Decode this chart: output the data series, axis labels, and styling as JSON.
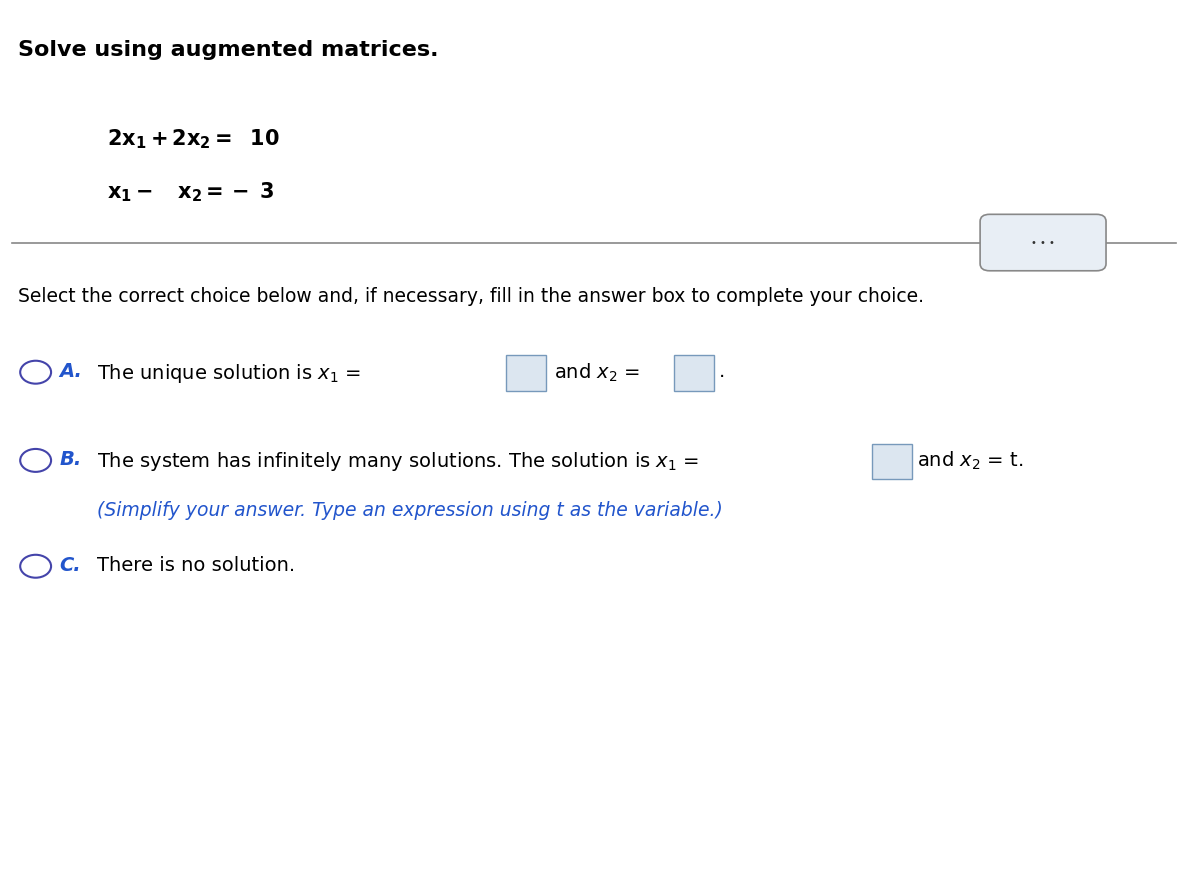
{
  "title": "Solve using augmented matrices.",
  "separator_line_color": "#888888",
  "dots_button_color": "#e8eef5",
  "dots_button_border": "#888888",
  "instruction": "Select the correct choice below and, if necessary, fill in the answer box to complete your choice.",
  "option_A_label": "A.",
  "option_B_label": "B.",
  "option_B_subtext": "(Simplify your answer. Type an expression using t as the variable.)",
  "option_C_label": "C.",
  "option_C_text": "There is no solution.",
  "circle_color": "#4444aa",
  "label_color": "#2255cc",
  "box_fill": "#dce6f0",
  "box_border": "#7799bb",
  "text_color": "#000000",
  "background_color": "#ffffff",
  "title_fontsize": 16,
  "body_fontsize": 14,
  "eq_fontsize": 15,
  "instruction_fontsize": 13.5
}
